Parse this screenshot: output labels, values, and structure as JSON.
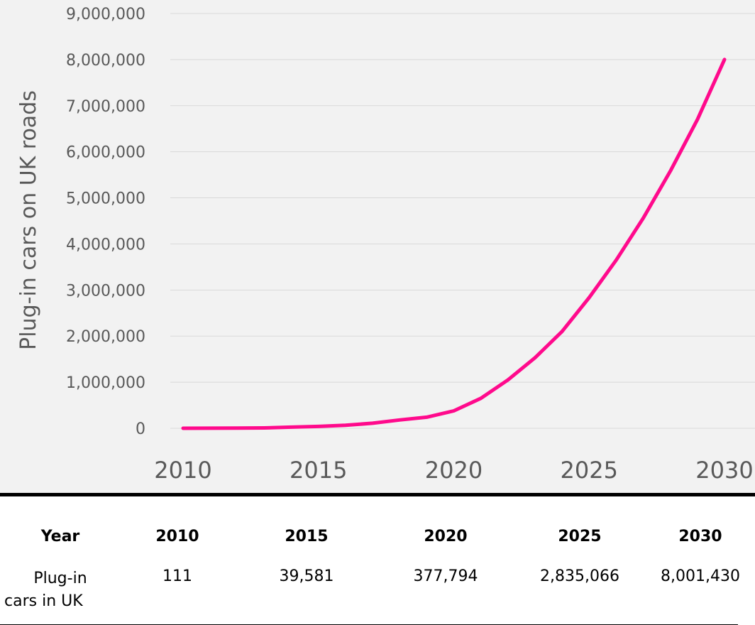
{
  "chart_data": {
    "type": "line",
    "title": "",
    "xlabel": "",
    "ylabel": "Plug-in cars on UK roads",
    "x_ticks": [
      "2010",
      "2015",
      "2020",
      "2025",
      "2030"
    ],
    "y_ticks": [
      "0",
      "1,000,000",
      "2,000,000",
      "3,000,000",
      "4,000,000",
      "5,000,000",
      "6,000,000",
      "7,000,000",
      "8,000,000",
      "9,000,000"
    ],
    "xlim": [
      2010,
      2030
    ],
    "ylim": [
      0,
      9000000
    ],
    "grid": "horizontal",
    "legend": "none",
    "series": [
      {
        "color": "#ff0a8c",
        "x": [
          2010,
          2011,
          2012,
          2013,
          2014,
          2015,
          2016,
          2017,
          2018,
          2019,
          2020,
          2021,
          2022,
          2023,
          2024,
          2025,
          2026,
          2027,
          2028,
          2029,
          2030
        ],
        "y": [
          111,
          1200,
          3500,
          7500,
          25000,
          39581,
          65000,
          110000,
          180000,
          240000,
          377794,
          650000,
          1050000,
          1530000,
          2100000,
          2835066,
          3650000,
          4560000,
          5580000,
          6700000,
          8001430
        ]
      }
    ]
  },
  "table": {
    "header": {
      "label": "Year",
      "years": [
        "2010",
        "2015",
        "2020",
        "2025",
        "2030"
      ]
    },
    "row": {
      "label_line1": "Plug-in",
      "label_line2": "cars in UK",
      "values": [
        "111",
        "39,581",
        "377,794",
        "2,835,066",
        "8,001,430"
      ]
    }
  },
  "colors": {
    "panel_background": "#f2f2f2",
    "gridline": "#d9d9d9",
    "line": "#ff0a8c",
    "axis_text": "#595959"
  }
}
